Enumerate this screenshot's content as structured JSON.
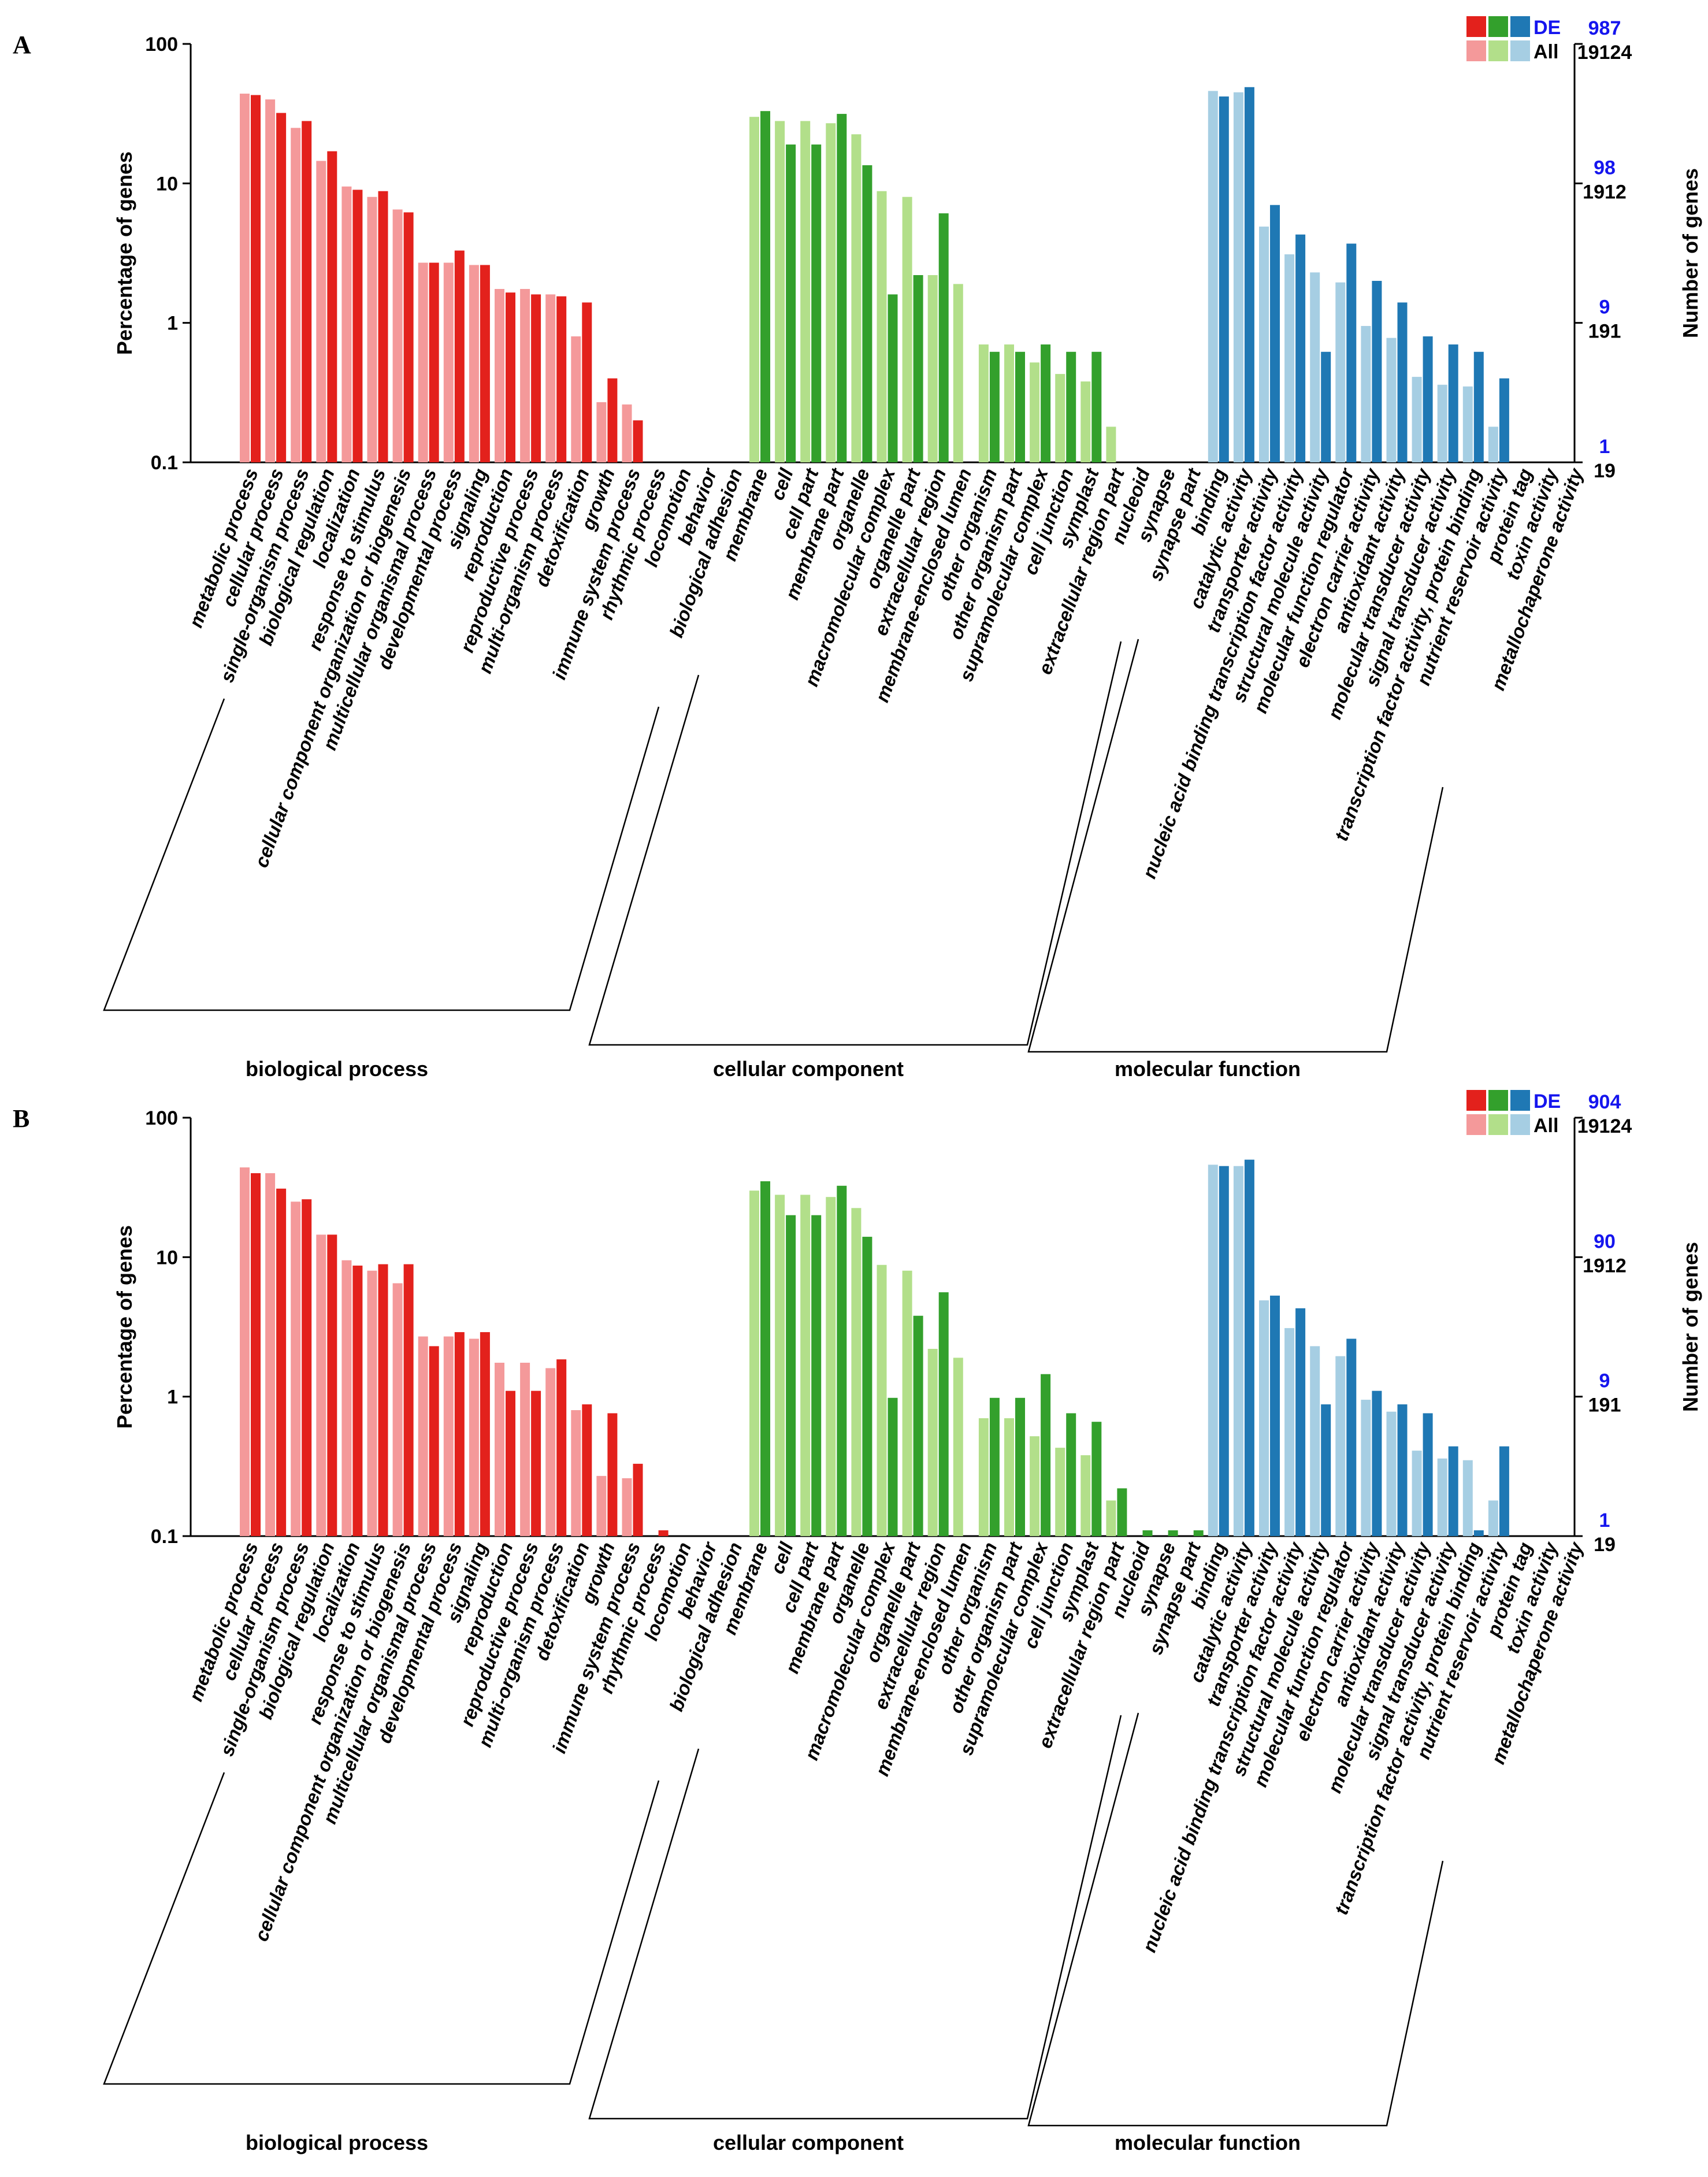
{
  "figure": {
    "categories": [
      "metabolic process",
      "cellular process",
      "single-organism process",
      "biological regulation",
      "localization",
      "response to stimulus",
      "cellular component organization or biogenesis",
      "multicellular organismal process",
      "developmental process",
      "signaling",
      "reproduction",
      "reproductive process",
      "multi-organism process",
      "detoxification",
      "growth",
      "immune system process",
      "rhythmic process",
      "locomotion",
      "behavior",
      "biological adhesion",
      "membrane",
      "cell",
      "cell part",
      "membrane part",
      "organelle",
      "macromolecular complex",
      "organelle part",
      "extracellular region",
      "membrane-enclosed lumen",
      "other organism",
      "other organism part",
      "supramolecular complex",
      "cell junction",
      "symplast",
      "extracellular region part",
      "nucleoid",
      "synapse",
      "synapse part",
      "binding",
      "catalytic activity",
      "transporter activity",
      "nucleic acid binding transcription factor activity",
      "structural molecule activity",
      "molecular function regulator",
      "electron carrier activity",
      "antioxidant activity",
      "molecular transducer activity",
      "signal transducer activity",
      "transcription factor activity, protein binding",
      "nutrient reservoir activity",
      "protein tag",
      "toxin activity",
      "metallochaperone activity"
    ],
    "groups": [
      {
        "name": "biological process",
        "start": 0,
        "end": 19
      },
      {
        "name": "cellular component",
        "start": 20,
        "end": 37
      },
      {
        "name": "molecular function",
        "start": 38,
        "end": 52
      }
    ],
    "colors": {
      "bp_de": "#e3211c",
      "bp_all": "#f4999a",
      "cc_de": "#33a02c",
      "cc_all": "#b2df8a",
      "mf_de": "#1f78b4",
      "mf_all": "#a6cee3",
      "de_count": "#1515ee"
    }
  },
  "chart_data": [
    {
      "type": "bar",
      "panel": "A",
      "ylabel": "Percentage of genes",
      "y2label": "Number of genes",
      "yscale": "log",
      "ylim": [
        0.1,
        100
      ],
      "yticks": [
        "100",
        "10",
        "1",
        "0.1"
      ],
      "right_ticks_de": [
        "987",
        "98",
        "9",
        "1"
      ],
      "right_ticks_all": [
        "19124",
        "1912",
        "191",
        "19"
      ],
      "legend": {
        "de": "DE",
        "all": "All"
      },
      "series": [
        {
          "name": "All",
          "values": [
            44,
            40,
            25,
            14.5,
            9.5,
            8,
            6.5,
            2.7,
            2.7,
            2.6,
            1.75,
            1.75,
            1.6,
            0.8,
            0.27,
            0.26,
            null,
            null,
            null,
            null,
            30,
            28,
            28,
            27,
            22.5,
            8.8,
            8,
            2.2,
            1.9,
            0.7,
            0.7,
            0.52,
            0.43,
            0.38,
            0.18,
            null,
            null,
            null,
            46,
            45,
            4.9,
            3.1,
            2.3,
            1.95,
            0.95,
            0.78,
            0.41,
            0.36,
            0.35,
            0.18,
            null,
            null,
            null
          ]
        },
        {
          "name": "DE",
          "values": [
            43,
            32,
            28,
            17,
            9,
            8.8,
            6.2,
            2.7,
            3.3,
            2.6,
            1.65,
            1.6,
            1.55,
            1.4,
            0.4,
            0.2,
            null,
            null,
            null,
            null,
            33,
            19,
            19,
            31.5,
            13.5,
            1.6,
            2.2,
            6.1,
            null,
            0.62,
            0.62,
            0.7,
            0.62,
            0.62,
            null,
            null,
            null,
            null,
            42,
            49,
            7,
            4.3,
            0.62,
            3.7,
            2,
            1.4,
            0.8,
            0.7,
            0.62,
            0.4,
            null,
            null,
            null
          ]
        }
      ]
    },
    {
      "type": "bar",
      "panel": "B",
      "ylabel": "Percentage of genes",
      "y2label": "Number of genes",
      "yscale": "log",
      "ylim": [
        0.1,
        100
      ],
      "yticks": [
        "100",
        "10",
        "1",
        "0.1"
      ],
      "right_ticks_de": [
        "904",
        "90",
        "9",
        "1"
      ],
      "right_ticks_all": [
        "19124",
        "1912",
        "191",
        "19"
      ],
      "legend": {
        "de": "DE",
        "all": "All"
      },
      "series": [
        {
          "name": "All",
          "values": [
            44,
            40,
            25,
            14.5,
            9.5,
            8,
            6.5,
            2.7,
            2.7,
            2.6,
            1.75,
            1.75,
            1.6,
            0.8,
            0.27,
            0.26,
            null,
            null,
            null,
            null,
            30,
            28,
            28,
            27,
            22.5,
            8.8,
            8,
            2.2,
            1.9,
            0.7,
            0.7,
            0.52,
            0.43,
            0.38,
            0.18,
            null,
            null,
            null,
            46,
            45,
            4.9,
            3.1,
            2.3,
            1.95,
            0.95,
            0.78,
            0.41,
            0.36,
            0.35,
            0.18,
            null,
            null,
            null
          ]
        },
        {
          "name": "DE",
          "values": [
            40,
            31,
            26,
            14.5,
            8.7,
            8.9,
            8.9,
            2.3,
            2.9,
            2.9,
            1.1,
            1.1,
            1.85,
            0.88,
            0.76,
            0.33,
            0.11,
            null,
            null,
            null,
            35,
            20,
            20,
            32.5,
            14,
            0.98,
            3.8,
            5.6,
            null,
            0.98,
            0.98,
            1.45,
            0.76,
            0.66,
            0.22,
            0.11,
            0.11,
            0.11,
            45,
            50,
            5.3,
            4.3,
            0.88,
            2.6,
            1.1,
            0.88,
            0.76,
            0.44,
            0.11,
            0.44,
            null,
            null,
            null
          ]
        }
      ]
    }
  ]
}
